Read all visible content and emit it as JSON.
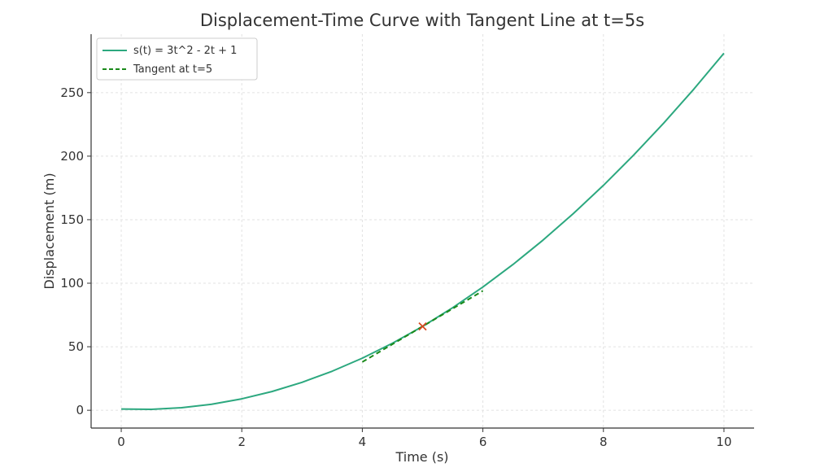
{
  "chart_data": {
    "type": "line",
    "title": "Displacement-Time Curve with Tangent Line at t=5s",
    "xlabel": "Time (s)",
    "ylabel": "Displacement (m)",
    "xlim": [
      -0.5,
      10.5
    ],
    "ylim": [
      -14,
      296
    ],
    "xticks": [
      0,
      2,
      4,
      6,
      8,
      10
    ],
    "yticks": [
      0,
      50,
      100,
      150,
      200,
      250
    ],
    "grid": true,
    "legend_position": "top-left",
    "series": [
      {
        "name": "s(t) = 3t^2 - 2t + 1",
        "style": "solid",
        "color": "#2ca87f",
        "x": [
          0,
          0.5,
          1,
          1.5,
          2,
          2.5,
          3,
          3.5,
          4,
          4.5,
          5,
          5.5,
          6,
          6.5,
          7,
          7.5,
          8,
          8.5,
          9,
          9.5,
          10
        ],
        "y": [
          1,
          0.75,
          2,
          4.75,
          9,
          14.75,
          22,
          30.75,
          41,
          52.75,
          66,
          80.75,
          97,
          114.75,
          134,
          154.75,
          177,
          200.75,
          226,
          252.75,
          281
        ]
      },
      {
        "name": "Tangent at t=5",
        "style": "dashed",
        "color": "#1a8a1a",
        "x": [
          4,
          6
        ],
        "y": [
          38,
          94
        ]
      }
    ],
    "markers": [
      {
        "x": 5,
        "y": 66,
        "symbol": "x",
        "color": "#d64a1f"
      }
    ]
  }
}
